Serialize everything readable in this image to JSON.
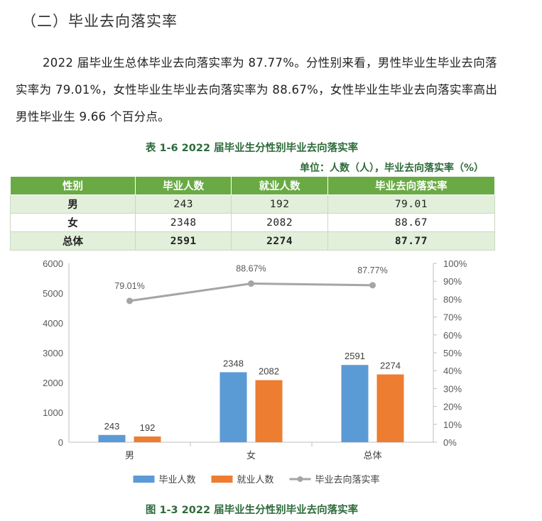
{
  "heading": "（二）毕业去向落实率",
  "paragraph": "2022 届毕业生总体毕业去向落实率为 87.77%。分性别来看，男性毕业生毕业去向落实率为 79.01%，女性毕业生毕业去向落实率为 88.67%，女性毕业生毕业去向落实率高出男性毕业生 9.66 个百分点。",
  "table": {
    "caption": "表 1-6 2022 届毕业生分性别毕业去向落实率",
    "unit": "单位：人数（人），毕业去向落实率（%）",
    "headers": [
      "性别",
      "毕业人数",
      "就业人数",
      "毕业去向落实率"
    ],
    "rows": [
      [
        "男",
        "243",
        "192",
        "79.01"
      ],
      [
        "女",
        "2348",
        "2082",
        "88.67"
      ],
      [
        "总体",
        "2591",
        "2274",
        "87.77"
      ]
    ]
  },
  "chart_data": {
    "type": "bar",
    "categories": [
      "男",
      "女",
      "总体"
    ],
    "series": [
      {
        "name": "毕业人数",
        "type": "bar",
        "axis": "left",
        "color": "#5b9bd5",
        "values": [
          243,
          2348,
          2591
        ],
        "labels": [
          "243",
          "2348",
          "2591"
        ]
      },
      {
        "name": "就业人数",
        "type": "bar",
        "axis": "left",
        "color": "#ed7d31",
        "values": [
          192,
          2082,
          2274
        ],
        "labels": [
          "192",
          "2082",
          "2274"
        ]
      },
      {
        "name": "毕业去向落实率",
        "type": "line",
        "axis": "right",
        "color": "#a5a5a5",
        "values": [
          79.01,
          88.67,
          87.77
        ],
        "labels": [
          "79.01%",
          "88.67%",
          "87.77%"
        ]
      }
    ],
    "ylim_left": [
      0,
      6000
    ],
    "yticks_left": [
      "0",
      "1000",
      "2000",
      "3000",
      "4000",
      "5000",
      "6000"
    ],
    "ylim_right": [
      0,
      100
    ],
    "yticks_right": [
      "0%",
      "10%",
      "20%",
      "30%",
      "40%",
      "50%",
      "60%",
      "70%",
      "80%",
      "90%",
      "100%"
    ],
    "legend_position": "bottom",
    "grid": false
  },
  "figure_caption": "图 1-3 2022 届毕业生分性别毕业去向落实率"
}
